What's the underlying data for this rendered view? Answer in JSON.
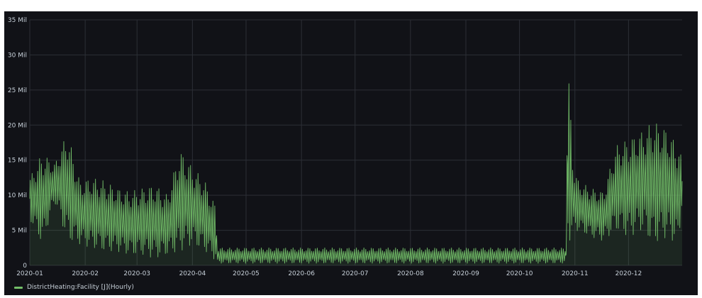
{
  "colors": {
    "background": "#111217",
    "grid": "#2c2f36",
    "series": "#73bf69",
    "text": "#c7d0d9"
  },
  "chart_data": {
    "type": "area",
    "xlabel": "",
    "ylabel": "",
    "x_range": [
      "2020-01-01",
      "2020-12-31"
    ],
    "ylim": [
      0,
      35000000
    ],
    "y_ticks": [
      {
        "value": 0,
        "label": "0"
      },
      {
        "value": 5000000,
        "label": "5 Mil"
      },
      {
        "value": 10000000,
        "label": "10 Mil"
      },
      {
        "value": 15000000,
        "label": "15 Mil"
      },
      {
        "value": 20000000,
        "label": "20 Mil"
      },
      {
        "value": 25000000,
        "label": "25 Mil"
      },
      {
        "value": 30000000,
        "label": "30 Mil"
      },
      {
        "value": 35000000,
        "label": "35 Mil"
      }
    ],
    "x_ticks": [
      {
        "value": "2020-01-01",
        "label": "2020-01"
      },
      {
        "value": "2020-02-01",
        "label": "2020-02"
      },
      {
        "value": "2020-03-01",
        "label": "2020-03"
      },
      {
        "value": "2020-04-01",
        "label": "2020-04"
      },
      {
        "value": "2020-05-01",
        "label": "2020-05"
      },
      {
        "value": "2020-06-01",
        "label": "2020-06"
      },
      {
        "value": "2020-07-01",
        "label": "2020-07"
      },
      {
        "value": "2020-08-01",
        "label": "2020-08"
      },
      {
        "value": "2020-09-01",
        "label": "2020-09"
      },
      {
        "value": "2020-10-01",
        "label": "2020-10"
      },
      {
        "value": "2020-11-01",
        "label": "2020-11"
      },
      {
        "value": "2020-12-01",
        "label": "2020-12"
      }
    ],
    "grid": true,
    "legend_position": "bottom-left",
    "series": [
      {
        "name": "DistrictHeating:Facility [J](Hourly)",
        "x": [
          "2020-01-01",
          "2020-01-08",
          "2020-01-15",
          "2020-01-22",
          "2020-01-29",
          "2020-02-05",
          "2020-02-12",
          "2020-02-19",
          "2020-02-26",
          "2020-03-04",
          "2020-03-11",
          "2020-03-18",
          "2020-03-25",
          "2020-04-01",
          "2020-04-08",
          "2020-04-14",
          "2020-04-15",
          "2020-05-15",
          "2020-06-15",
          "2020-07-15",
          "2020-08-15",
          "2020-09-15",
          "2020-10-15",
          "2020-10-27",
          "2020-10-28",
          "2020-10-31",
          "2020-11-03",
          "2020-11-10",
          "2020-11-17",
          "2020-11-24",
          "2020-12-01",
          "2020-12-08",
          "2020-12-15",
          "2020-12-22",
          "2020-12-29",
          "2020-12-31"
        ],
        "daily_peak": [
          12500000,
          16000000,
          14500000,
          19000000,
          12000000,
          12500000,
          12000000,
          11000000,
          10500000,
          11000000,
          11500000,
          10000000,
          16500000,
          14000000,
          12000000,
          8500000,
          2500000,
          2500000,
          2500000,
          2500000,
          2500000,
          2500000,
          2500000,
          2500000,
          30000000,
          14500000,
          12000000,
          11000000,
          10500000,
          17000000,
          18000000,
          19000000,
          20500000,
          19500000,
          17000000,
          15000000
        ],
        "daily_low": [
          6500000,
          3000000,
          9000000,
          3500000,
          3000000,
          2500000,
          2000000,
          2000000,
          1500000,
          1500000,
          1000000,
          1500000,
          2000000,
          3000000,
          2000000,
          700000,
          300000,
          300000,
          300000,
          300000,
          300000,
          300000,
          300000,
          300000,
          3000000,
          4500000,
          5000000,
          4000000,
          3500000,
          5000000,
          4000000,
          5000000,
          3000000,
          4000000,
          3000000,
          9000000
        ]
      }
    ]
  }
}
